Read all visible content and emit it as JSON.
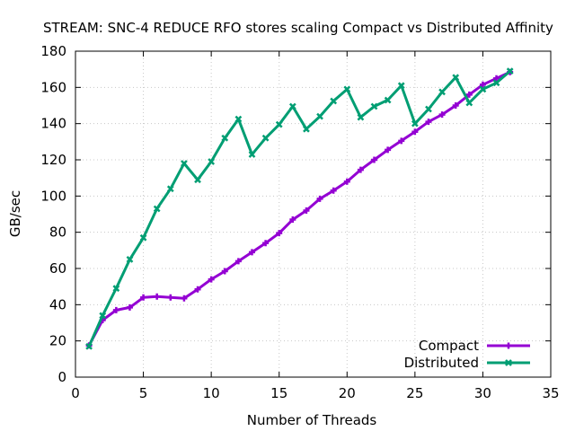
{
  "chart_data": {
    "type": "line",
    "title": "STREAM: SNC-4 REDUCE RFO stores scaling Compact vs Distributed Affinity",
    "xlabel": "Number of Threads",
    "ylabel": "GB/sec",
    "xlim": [
      0,
      35
    ],
    "ylim": [
      0,
      180
    ],
    "xticks": [
      0,
      5,
      10,
      15,
      20,
      25,
      30,
      35
    ],
    "yticks": [
      0,
      20,
      40,
      60,
      80,
      100,
      120,
      140,
      160,
      180
    ],
    "grid": true,
    "legend_position": "bottom-right",
    "x": [
      1,
      2,
      3,
      4,
      5,
      6,
      7,
      8,
      9,
      10,
      11,
      12,
      13,
      14,
      15,
      16,
      17,
      18,
      19,
      20,
      21,
      22,
      23,
      24,
      25,
      26,
      27,
      28,
      29,
      30,
      31,
      32
    ],
    "series": [
      {
        "name": "Compact",
        "color": "#9400d3",
        "marker": "plus",
        "values": [
          17.5,
          31.5,
          37,
          38.5,
          44,
          44.5,
          44,
          43.5,
          48.5,
          54,
          58.5,
          64,
          69,
          74,
          79.5,
          87,
          92,
          98.5,
          103,
          108,
          114.5,
          120,
          125.5,
          130.5,
          135.5,
          141,
          145,
          150,
          156,
          161.5,
          165,
          168.5
        ]
      },
      {
        "name": "Distributed",
        "color": "#009e73",
        "marker": "cross",
        "values": [
          17,
          34,
          49,
          65,
          77,
          93,
          104,
          118,
          109,
          119,
          132,
          142.5,
          123,
          132,
          139.5,
          149.5,
          137,
          144,
          152.5,
          159,
          143.5,
          149.5,
          153,
          161,
          140,
          148,
          157.5,
          165.5,
          151.5,
          159,
          162.5,
          169
        ]
      }
    ]
  }
}
